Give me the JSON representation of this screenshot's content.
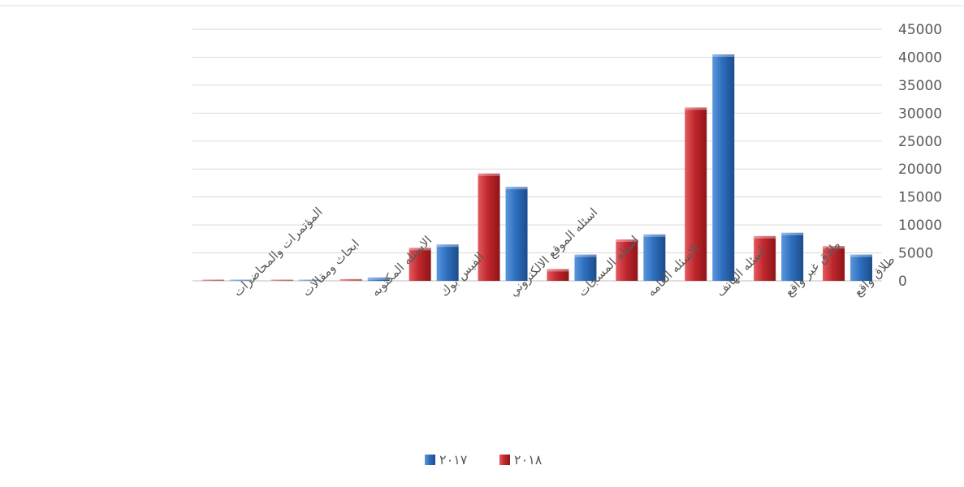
{
  "chart_data": {
    "type": "bar",
    "title": "",
    "xlabel": "",
    "ylabel": "",
    "y_axis_side": "right",
    "category_order": "right-to-left",
    "categories": [
      "طلاق واقع",
      "طلاق غير واقع",
      "اسئله الهاتف",
      "الاسئله العامه",
      "اسئله المسجات",
      "اسئله الموقع الالكتروني",
      "الفيس بوك",
      "الاسئله المكتوبه",
      "ابحاث ومقالات",
      "المؤتمرات والمحاضرات"
    ],
    "series": [
      {
        "name": "٢٠١٨",
        "color": "#c0272d",
        "values": [
          6200,
          8000,
          31000,
          7400,
          2100,
          19200,
          5900,
          300,
          200,
          200
        ]
      },
      {
        "name": "٢٠١٧",
        "color": "#2e6fbe",
        "values": [
          4700,
          8600,
          40500,
          8300,
          4700,
          16800,
          6500,
          600,
          200,
          200
        ]
      }
    ],
    "ylim": [
      0,
      45000
    ],
    "yticks": [
      "0",
      "5000",
      "10000",
      "15000",
      "20000",
      "25000",
      "30000",
      "35000",
      "40000",
      "45000"
    ],
    "grid": true,
    "legend_position": "bottom"
  }
}
